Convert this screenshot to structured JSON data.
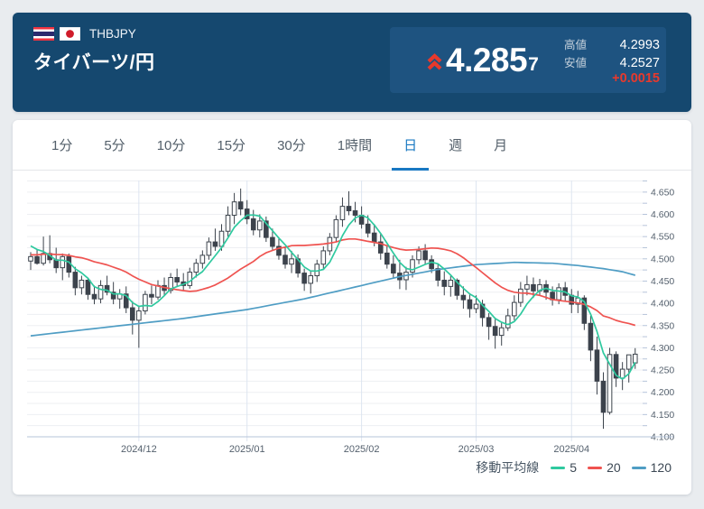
{
  "header": {
    "pair_code": "THBJPY",
    "pair_name": "タイバーツ/円",
    "price_main": "4.285",
    "price_small": "7",
    "direction": "up",
    "stats": {
      "high_label": "高値",
      "high_value": "4.2993",
      "low_label": "安値",
      "low_value": "4.2527",
      "change": "+0.0015"
    }
  },
  "tabs": [
    {
      "key": "1min",
      "label": "1分",
      "active": false
    },
    {
      "key": "5min",
      "label": "5分",
      "active": false
    },
    {
      "key": "10min",
      "label": "10分",
      "active": false
    },
    {
      "key": "15min",
      "label": "15分",
      "active": false
    },
    {
      "key": "30min",
      "label": "30分",
      "active": false
    },
    {
      "key": "1hour",
      "label": "1時間",
      "active": false
    },
    {
      "key": "day",
      "label": "日",
      "active": true
    },
    {
      "key": "week",
      "label": "週",
      "active": false
    },
    {
      "key": "month",
      "label": "月",
      "active": false
    }
  ],
  "legend": {
    "title": "移動平均線",
    "items": [
      {
        "label": "5",
        "color": "#2fc99f"
      },
      {
        "label": "20",
        "color": "#ef5350"
      },
      {
        "label": "120",
        "color": "#4f9dc4"
      }
    ]
  },
  "colors": {
    "accent_red": "#e8392c",
    "header_navy": "#15486f",
    "panel_navy": "#1e5380",
    "tab_active_blue": "#1878c2",
    "candle_dark": "#3c434c",
    "candle_up_fill": "#ffffff",
    "ma5": "#2fc99f",
    "ma20": "#ef5350",
    "ma120": "#4f9dc4",
    "grid": "#edeff2",
    "month_grid": "#dde5f0",
    "axis_line": "#b6c4da",
    "axis_text": "#55616e"
  },
  "chart_data": {
    "type": "candlestick",
    "title": "THBJPY daily candlestick chart with moving averages",
    "timeframe": "日",
    "ylim": [
      4.1,
      4.675
    ],
    "y_tick_step_minor": 0.025,
    "y_tick_step_labeled": 0.05,
    "y_tick_labels": [
      "4.100",
      "4.150",
      "4.200",
      "4.250",
      "4.300",
      "4.350",
      "4.400",
      "4.450",
      "4.500",
      "4.550",
      "4.600",
      "4.650"
    ],
    "grid": true,
    "legend_position": "bottom-right",
    "x_labels": [
      {
        "label": "2024/12",
        "index": 17
      },
      {
        "label": "2025/01",
        "index": 34
      },
      {
        "label": "2025/02",
        "index": 52
      },
      {
        "label": "2025/03",
        "index": 70
      },
      {
        "label": "2025/04",
        "index": 85
      }
    ],
    "candles": [
      [
        4.495,
        4.515,
        4.475,
        4.505
      ],
      [
        4.505,
        4.52,
        4.487,
        4.49
      ],
      [
        4.49,
        4.55,
        4.485,
        4.512
      ],
      [
        4.512,
        4.553,
        4.49,
        4.498
      ],
      [
        4.498,
        4.525,
        4.468,
        4.48
      ],
      [
        4.48,
        4.512,
        4.452,
        4.505
      ],
      [
        4.505,
        4.512,
        4.458,
        4.47
      ],
      [
        4.47,
        4.482,
        4.418,
        4.435
      ],
      [
        4.435,
        4.462,
        4.42,
        4.452
      ],
      [
        4.452,
        4.458,
        4.408,
        4.42
      ],
      [
        4.42,
        4.44,
        4.398,
        4.41
      ],
      [
        4.41,
        4.452,
        4.4,
        4.44
      ],
      [
        4.44,
        4.462,
        4.418,
        4.425
      ],
      [
        4.425,
        4.448,
        4.398,
        4.41
      ],
      [
        4.41,
        4.432,
        4.388,
        4.421
      ],
      [
        4.421,
        4.438,
        4.378,
        4.39
      ],
      [
        4.39,
        4.405,
        4.33,
        4.362
      ],
      [
        4.362,
        4.392,
        4.3,
        4.383
      ],
      [
        4.383,
        4.428,
        4.375,
        4.42
      ],
      [
        4.42,
        4.44,
        4.398,
        4.414
      ],
      [
        4.414,
        4.452,
        4.408,
        4.44
      ],
      [
        4.44,
        4.458,
        4.418,
        4.429
      ],
      [
        4.429,
        4.468,
        4.422,
        4.458
      ],
      [
        4.458,
        4.478,
        4.438,
        4.448
      ],
      [
        4.448,
        4.468,
        4.428,
        4.44
      ],
      [
        4.44,
        4.48,
        4.433,
        4.47
      ],
      [
        4.47,
        4.5,
        4.458,
        4.49
      ],
      [
        4.49,
        4.519,
        4.478,
        4.508
      ],
      [
        4.508,
        4.548,
        4.498,
        4.538
      ],
      [
        4.538,
        4.568,
        4.518,
        4.528
      ],
      [
        4.528,
        4.578,
        4.518,
        4.562
      ],
      [
        4.562,
        4.618,
        4.55,
        4.598
      ],
      [
        4.598,
        4.648,
        4.578,
        4.628
      ],
      [
        4.628,
        4.658,
        4.598,
        4.612
      ],
      [
        4.612,
        4.632,
        4.578,
        4.59
      ],
      [
        4.59,
        4.61,
        4.553,
        4.565
      ],
      [
        4.565,
        4.6,
        4.548,
        4.585
      ],
      [
        4.585,
        4.595,
        4.538,
        4.548
      ],
      [
        4.548,
        4.568,
        4.518,
        4.528
      ],
      [
        4.528,
        4.548,
        4.498,
        4.508
      ],
      [
        4.508,
        4.528,
        4.478,
        4.488
      ],
      [
        4.488,
        4.518,
        4.468,
        4.5
      ],
      [
        4.5,
        4.51,
        4.458,
        4.468
      ],
      [
        4.468,
        4.478,
        4.428,
        4.445
      ],
      [
        4.445,
        4.472,
        4.422,
        4.462
      ],
      [
        4.462,
        4.498,
        4.448,
        4.488
      ],
      [
        4.488,
        4.528,
        4.478,
        4.518
      ],
      [
        4.518,
        4.558,
        4.508,
        4.548
      ],
      [
        4.548,
        4.598,
        4.538,
        4.588
      ],
      [
        4.588,
        4.638,
        4.572,
        4.618
      ],
      [
        4.618,
        4.652,
        4.598,
        4.608
      ],
      [
        4.608,
        4.628,
        4.582,
        4.598
      ],
      [
        4.598,
        4.618,
        4.568,
        4.578
      ],
      [
        4.578,
        4.598,
        4.548,
        4.558
      ],
      [
        4.558,
        4.578,
        4.528,
        4.538
      ],
      [
        4.538,
        4.558,
        4.498,
        4.513
      ],
      [
        4.513,
        4.528,
        4.478,
        4.488
      ],
      [
        4.488,
        4.508,
        4.458,
        4.468
      ],
      [
        4.468,
        4.498,
        4.432,
        4.453
      ],
      [
        4.453,
        4.482,
        4.43,
        4.47
      ],
      [
        4.47,
        4.508,
        4.458,
        4.498
      ],
      [
        4.498,
        4.528,
        4.488,
        4.518
      ],
      [
        4.518,
        4.533,
        4.488,
        4.498
      ],
      [
        4.498,
        4.508,
        4.468,
        4.478
      ],
      [
        4.478,
        4.488,
        4.438,
        4.452
      ],
      [
        4.452,
        4.472,
        4.418,
        4.438
      ],
      [
        4.438,
        4.462,
        4.415,
        4.452
      ],
      [
        4.452,
        4.456,
        4.408,
        4.418
      ],
      [
        4.418,
        4.438,
        4.388,
        4.408
      ],
      [
        4.408,
        4.422,
        4.368,
        4.388
      ],
      [
        4.388,
        4.418,
        4.378,
        4.398
      ],
      [
        4.398,
        4.408,
        4.348,
        4.368
      ],
      [
        4.368,
        4.378,
        4.318,
        4.348
      ],
      [
        4.348,
        4.368,
        4.298,
        4.328
      ],
      [
        4.328,
        4.358,
        4.305,
        4.345
      ],
      [
        4.345,
        4.388,
        4.338,
        4.372
      ],
      [
        4.372,
        4.418,
        4.362,
        4.402
      ],
      [
        4.402,
        4.448,
        4.392,
        4.432
      ],
      [
        4.432,
        4.462,
        4.418,
        4.442
      ],
      [
        4.442,
        4.458,
        4.412,
        4.428
      ],
      [
        4.428,
        4.455,
        4.418,
        4.442
      ],
      [
        4.442,
        4.452,
        4.408,
        4.425
      ],
      [
        4.425,
        4.438,
        4.395,
        4.408
      ],
      [
        4.408,
        4.445,
        4.398,
        4.435
      ],
      [
        4.435,
        4.448,
        4.405,
        4.418
      ],
      [
        4.418,
        4.432,
        4.378,
        4.398
      ],
      [
        4.398,
        4.428,
        4.378,
        4.412
      ],
      [
        4.412,
        4.418,
        4.34,
        4.355
      ],
      [
        4.355,
        4.372,
        4.27,
        4.295
      ],
      [
        4.295,
        4.325,
        4.195,
        4.225
      ],
      [
        4.225,
        4.245,
        4.118,
        4.155
      ],
      [
        4.155,
        4.3,
        4.15,
        4.285
      ],
      [
        4.285,
        4.292,
        4.212,
        4.232
      ],
      [
        4.232,
        4.268,
        4.205,
        4.252
      ],
      [
        4.252,
        4.278,
        4.222,
        4.2842
      ],
      [
        4.266,
        4.2993,
        4.2527,
        4.2857
      ]
    ],
    "moving_averages": {
      "periods": [
        5,
        20,
        120
      ],
      "seed_closes": [
        4.49,
        4.485,
        4.49,
        4.5,
        4.51,
        4.505,
        4.5,
        4.495,
        4.5,
        4.51,
        4.505,
        4.5,
        4.51,
        4.52,
        4.515,
        4.53,
        4.535,
        4.54,
        4.535
      ],
      "ma120_points": [
        [
          0,
          4.327
        ],
        [
          8,
          4.34
        ],
        [
          16,
          4.353
        ],
        [
          24,
          4.366
        ],
        [
          34,
          4.386
        ],
        [
          43,
          4.41
        ],
        [
          52,
          4.44
        ],
        [
          58,
          4.46
        ],
        [
          64,
          4.476
        ],
        [
          70,
          4.487
        ],
        [
          76,
          4.492
        ],
        [
          82,
          4.49
        ],
        [
          86,
          4.485
        ],
        [
          90,
          4.478
        ],
        [
          93,
          4.471
        ],
        [
          95,
          4.463
        ]
      ]
    }
  }
}
